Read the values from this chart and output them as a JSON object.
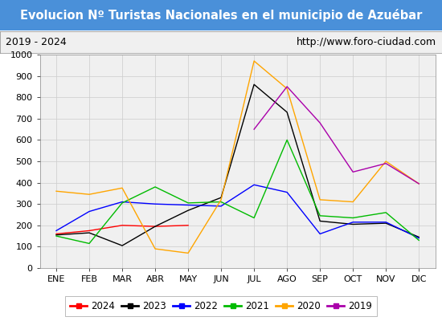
{
  "title": "Evolucion Nº Turistas Nacionales en el municipio de Azuébar",
  "subtitle_left": "2019 - 2024",
  "subtitle_right": "http://www.foro-ciudad.com",
  "months": [
    "ENE",
    "FEB",
    "MAR",
    "ABR",
    "MAY",
    "JUN",
    "JUL",
    "AGO",
    "SEP",
    "OCT",
    "NOV",
    "DIC"
  ],
  "ylim": [
    0,
    1000
  ],
  "yticks": [
    0,
    100,
    200,
    300,
    400,
    500,
    600,
    700,
    800,
    900,
    1000
  ],
  "series": {
    "2024": {
      "color": "#ff0000",
      "values": [
        160,
        175,
        200,
        195,
        200,
        null,
        null,
        null,
        null,
        null,
        null,
        null
      ]
    },
    "2023": {
      "color": "#000000",
      "values": [
        155,
        165,
        105,
        195,
        270,
        330,
        860,
        730,
        220,
        205,
        210,
        145
      ]
    },
    "2022": {
      "color": "#0000ff",
      "values": [
        175,
        265,
        310,
        300,
        295,
        290,
        390,
        355,
        160,
        215,
        215,
        140
      ]
    },
    "2021": {
      "color": "#00bb00",
      "values": [
        150,
        115,
        305,
        380,
        305,
        310,
        235,
        600,
        245,
        235,
        260,
        130
      ]
    },
    "2020": {
      "color": "#ffa500",
      "values": [
        360,
        345,
        375,
        90,
        70,
        320,
        970,
        840,
        320,
        310,
        500,
        395
      ]
    },
    "2019": {
      "color": "#aa00aa",
      "values": [
        null,
        null,
        null,
        null,
        null,
        null,
        650,
        850,
        680,
        450,
        490,
        395
      ]
    }
  },
  "legend_order": [
    "2024",
    "2023",
    "2022",
    "2021",
    "2020",
    "2019"
  ],
  "title_bg_color": "#4a90d9",
  "title_text_color": "#ffffff",
  "subtitle_bg_color": "#f0f0f0",
  "plot_bg_color": "#f0f0f0",
  "grid_color": "#cccccc",
  "title_fontsize": 10.5,
  "subtitle_fontsize": 9,
  "axis_fontsize": 8,
  "legend_fontsize": 8.5
}
